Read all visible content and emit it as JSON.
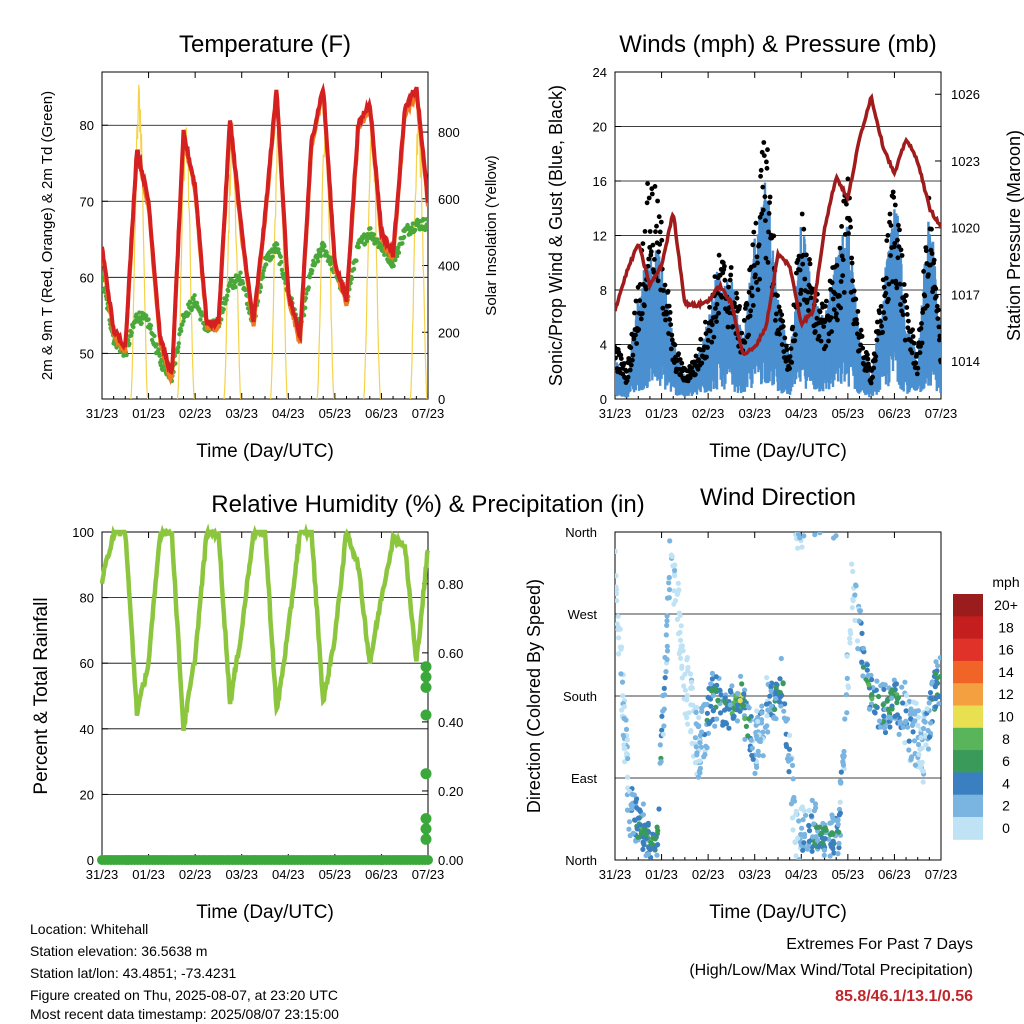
{
  "x_axis": {
    "ticks": [
      "31/23",
      "01/23",
      "02/23",
      "03/23",
      "04/23",
      "05/23",
      "06/23",
      "07/23"
    ],
    "label": "Time (Day/UTC)"
  },
  "panels": {
    "temperature": {
      "title": "Temperature (F)",
      "left_label": "2m & 9m T (Red, Orange) & 2m Td (Green)",
      "right_label": "Solar Insolation (Yellow)",
      "left_ticks": [
        "50",
        "60",
        "70",
        "80"
      ],
      "right_ticks": [
        "0",
        "200",
        "400",
        "600",
        "800"
      ]
    },
    "winds": {
      "title": "Winds (mph) & Pressure (mb)",
      "left_label": "Sonic/Prop Wind & Gust (Blue, Black)",
      "right_label": "Station Pressure (Maroon)",
      "left_ticks": [
        "0",
        "4",
        "8",
        "12",
        "16",
        "20",
        "24"
      ],
      "right_ticks": [
        "1014",
        "1017",
        "1020",
        "1023",
        "1026"
      ]
    },
    "humidity": {
      "title": "Relative Humidity (%) & Precipitation (in)",
      "left_label": "Percent & Total Rainfall",
      "left_ticks": [
        "0",
        "20",
        "40",
        "60",
        "80",
        "100"
      ],
      "right_ticks": [
        "0.00",
        "0.20",
        "0.40",
        "0.60",
        "0.80"
      ]
    },
    "direction": {
      "title": "Wind Direction",
      "left_label": "Direction (Colored By Speed)",
      "left_ticks": [
        "North",
        "East",
        "South",
        "West",
        "North"
      ],
      "legend_unit": "mph",
      "legend_labels": [
        "20+",
        "18",
        "16",
        "14",
        "12",
        "10",
        "8",
        "6",
        "4",
        "2",
        "0"
      ]
    }
  },
  "colors": {
    "temp_2m": "#d42020",
    "temp_9m": "#f07a20",
    "dewpoint": "#4aa83a",
    "solar": "#f5d24a",
    "wind": "#4a90d0",
    "gust": "#000000",
    "pressure": "#a01c1c",
    "humidity": "#8cc63f",
    "precip": "#3aa83a",
    "legend": [
      "#9b1c1c",
      "#c41e1e",
      "#e03228",
      "#f06428",
      "#f4a040",
      "#e8e050",
      "#5ab45a",
      "#3a9a5a",
      "#3a80c0",
      "#7ab4e0",
      "#bfe3f5"
    ]
  },
  "info": {
    "location": "Location: Whitehall",
    "elevation": "Station elevation: 36.5638 m",
    "latlon": "Station lat/lon: 43.4851; -73.4231",
    "created": "Figure created on Thu, 2025-08-07, at 23:20 UTC",
    "recent": "Most recent data timestamp: 2025/08/07 23:15:00"
  },
  "extremes": {
    "line1": "Extremes For Past 7 Days",
    "line2": "(High/Low/Max Wind/Total Precipitation)",
    "values": "85.8/46.1/13.1/0.56"
  },
  "chart_data": [
    {
      "type": "line",
      "title": "Temperature (F)",
      "xlabel": "Time (Day/UTC)",
      "ylabel": "2m & 9m T (Red, Orange) & 2m Td (Green)",
      "y2label": "Solar Insolation (Yellow)",
      "ylim": [
        44,
        87
      ],
      "y2lim": [
        0,
        980
      ],
      "x": [
        0.0,
        0.25,
        0.5,
        0.75,
        1.0,
        1.25,
        1.5,
        1.75,
        2.0,
        2.25,
        2.5,
        2.75,
        3.0,
        3.25,
        3.5,
        3.75,
        4.0,
        4.25,
        4.5,
        4.75,
        5.0,
        5.25,
        5.5,
        5.75,
        6.0,
        6.25,
        6.5,
        6.75,
        7.0
      ],
      "series": [
        {
          "name": "2m T",
          "values": [
            64,
            53,
            51,
            77,
            70,
            52,
            47,
            79,
            72,
            54,
            54,
            81,
            66,
            54,
            68,
            85,
            58,
            52,
            78,
            85,
            62,
            57,
            80,
            83,
            66,
            63,
            82,
            85,
            70
          ]
        },
        {
          "name": "2m Td",
          "values": [
            60,
            52,
            50,
            55,
            54,
            49,
            47,
            55,
            57,
            53,
            54,
            59,
            60,
            54,
            62,
            64,
            58,
            53,
            61,
            64,
            61,
            57,
            64,
            66,
            64,
            62,
            66,
            67,
            67
          ]
        },
        {
          "name": "Solar Insolation",
          "values": [
            430,
            0,
            0,
            980,
            0,
            0,
            0,
            880,
            0,
            0,
            0,
            860,
            0,
            0,
            0,
            930,
            0,
            0,
            0,
            900,
            0,
            0,
            0,
            870,
            0,
            0,
            0,
            880,
            0
          ]
        }
      ]
    },
    {
      "type": "scatter",
      "title": "Winds (mph) & Pressure (mb)",
      "xlabel": "Time (Day/UTC)",
      "ylabel": "Sonic/Prop Wind & Gust (Blue, Black)",
      "y2label": "Station Pressure (Maroon)",
      "ylim": [
        0,
        24
      ],
      "y2lim": [
        1012.3,
        1027
      ],
      "x": [
        0.0,
        0.25,
        0.5,
        0.75,
        1.0,
        1.25,
        1.5,
        1.75,
        2.0,
        2.25,
        2.5,
        2.75,
        3.0,
        3.25,
        3.5,
        3.75,
        4.0,
        4.25,
        4.5,
        4.75,
        5.0,
        5.25,
        5.5,
        5.75,
        6.0,
        6.25,
        6.5,
        6.75,
        7.0
      ],
      "series": [
        {
          "name": "Wind",
          "values": [
            2,
            1,
            5,
            8,
            7,
            3,
            1,
            2,
            4,
            7,
            6,
            3,
            8,
            11,
            5,
            2,
            9,
            5,
            4,
            7,
            9,
            3,
            1,
            5,
            11,
            4,
            2,
            10,
            3
          ]
        },
        {
          "name": "Gust",
          "values": [
            4,
            2,
            8,
            16,
            12,
            4,
            2,
            3,
            6,
            10,
            9,
            5,
            12,
            19,
            7,
            3,
            13,
            8,
            6,
            10,
            15,
            5,
            2,
            8,
            16,
            7,
            3,
            14,
            4
          ]
        },
        {
          "name": "Station Pressure",
          "values": [
            1016.3,
            1018.0,
            1019.3,
            1017.4,
            1018.3,
            1020.7,
            1016.6,
            1016.5,
            1016.7,
            1017.4,
            1016.6,
            1014.3,
            1014.6,
            1015.6,
            1018.8,
            1018.3,
            1015.7,
            1016.2,
            1020.0,
            1022.3,
            1021.3,
            1024.0,
            1025.9,
            1023.7,
            1022.4,
            1024.0,
            1023.0,
            1020.9,
            1020.0
          ]
        }
      ]
    },
    {
      "type": "line",
      "title": "Relative Humidity (%) & Precipitation (in)",
      "xlabel": "Time (Day/UTC)",
      "ylabel": "Percent & Total Rainfall",
      "ylim": [
        0,
        100
      ],
      "y2lim": [
        0,
        0.95
      ],
      "x": [
        0.0,
        0.25,
        0.5,
        0.75,
        1.0,
        1.25,
        1.5,
        1.75,
        2.0,
        2.25,
        2.5,
        2.75,
        3.0,
        3.25,
        3.5,
        3.75,
        4.0,
        4.25,
        4.5,
        4.75,
        5.0,
        5.25,
        5.5,
        5.75,
        6.0,
        6.25,
        6.5,
        6.75,
        7.0
      ],
      "series": [
        {
          "name": "Relative Humidity",
          "values": [
            85,
            100,
            100,
            45,
            60,
            100,
            100,
            40,
            62,
            100,
            100,
            48,
            70,
            100,
            100,
            45,
            70,
            100,
            100,
            48,
            68,
            100,
            90,
            60,
            80,
            98,
            96,
            60,
            95
          ]
        },
        {
          "name": "Total Rainfall",
          "values": [
            0,
            0,
            0,
            0,
            0,
            0,
            0,
            0,
            0,
            0,
            0,
            0,
            0,
            0,
            0,
            0,
            0,
            0,
            0,
            0,
            0,
            0,
            0,
            0,
            0,
            0,
            0,
            0,
            0.56
          ]
        }
      ]
    },
    {
      "type": "scatter",
      "title": "Wind Direction",
      "xlabel": "Time (Day/UTC)",
      "ylabel": "Direction (Colored By Speed)",
      "y_categories": [
        "North",
        "East",
        "South",
        "West",
        "North"
      ],
      "ylim": [
        0,
        360
      ],
      "x": [
        0.0,
        0.3,
        0.6,
        0.9,
        1.2,
        1.5,
        1.8,
        2.1,
        2.4,
        2.7,
        3.0,
        3.3,
        3.6,
        3.9,
        4.2,
        4.5,
        4.8,
        5.1,
        5.4,
        5.7,
        6.0,
        6.3,
        6.6,
        6.9
      ],
      "series": [
        {
          "name": "Direction",
          "values": [
            330,
            60,
            30,
            20,
            340,
            200,
            120,
            180,
            160,
            180,
            120,
            170,
            190,
            20,
            30,
            25,
            20,
            300,
            200,
            160,
            180,
            150,
            120,
            190
          ]
        },
        {
          "name": "Speed",
          "values": [
            1,
            3,
            7,
            6,
            2,
            1,
            3,
            6,
            5,
            9,
            3,
            4,
            7,
            2,
            5,
            6,
            5,
            1,
            7,
            5,
            7,
            4,
            2,
            6
          ]
        }
      ],
      "legend_unit": "mph",
      "legend_labels": [
        "20+",
        "18",
        "16",
        "14",
        "12",
        "10",
        "8",
        "6",
        "4",
        "2",
        "0"
      ]
    }
  ]
}
